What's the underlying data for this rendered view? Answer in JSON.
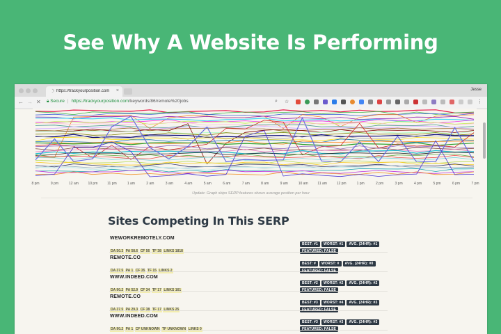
{
  "headline": "See Why A Website Is Performing",
  "browser": {
    "tab_title": "https://trackyourposition.com",
    "user_name": "Jesse",
    "secure_label": "Secure",
    "url_host": "https://trackyourposition.com",
    "url_path": "/keywords/86/remote%20jobs"
  },
  "graph": {
    "hour_labels": [
      "8 pm",
      "9 pm",
      "12 am",
      "10 pm",
      "11 pm",
      "1 am",
      "2 am",
      "3 am",
      "4 am",
      "5 am",
      "6 am",
      "7 am",
      "8 am",
      "9 am",
      "10 am",
      "11 am",
      "12 pm",
      "1 pm",
      "2 pm",
      "3 pm",
      "4 pm",
      "5 pm",
      "6 pm",
      "7 pm"
    ],
    "caption": "Update: Graph skips SERP features shows average position per hour"
  },
  "section_title": "Sites Competing In This SERP",
  "sites": [
    {
      "name": "WEWORKREMOTELY.COM",
      "metrics": [
        "DA 50.3",
        "PA 58.6",
        "CF 56",
        "TF 38",
        "LINKS 1818"
      ],
      "badges": [
        "BEST: #1",
        "WORST: #1",
        "AVG. (24HR): #1"
      ],
      "featured": "FEATURED: FALSE"
    },
    {
      "name": "REMOTE.CO",
      "metrics": [
        "DA 37.5",
        "PA 1",
        "CF 35",
        "TF 15",
        "LINKS 2"
      ],
      "badges": [
        "BEST: #",
        "WORST: #",
        "AVG. (24HR): #0"
      ],
      "featured": "FEATURED: FALSE"
    },
    {
      "name": "WWW.INDEED.COM",
      "metrics": [
        "DA 90.2",
        "PA 52.9",
        "CF 34",
        "TF 17",
        "LINKS 161"
      ],
      "badges": [
        "BEST: #2",
        "WORST: #2",
        "AVG. (24HR): #2"
      ],
      "featured": "FEATURED: FALSE"
    },
    {
      "name": "REMOTE.CO",
      "metrics": [
        "DA 37.5",
        "PA 29.3",
        "CF 38",
        "TF 17",
        "LINKS 25"
      ],
      "badges": [
        "BEST: #3",
        "WORST: #4",
        "AVG. (24HR): #3"
      ],
      "featured": "FEATURED: FALSE"
    },
    {
      "name": "WWW.INDEED.COM",
      "metrics": [
        "DA 90.2",
        "PA 1",
        "CF UNKNOWN",
        "TF UNKNOWN",
        "LINKS 0"
      ],
      "badges": [
        "BEST: #3",
        "WORST: #3",
        "AVG. (24HR): #3"
      ],
      "featured": "FEATURED: FALSE"
    }
  ]
}
